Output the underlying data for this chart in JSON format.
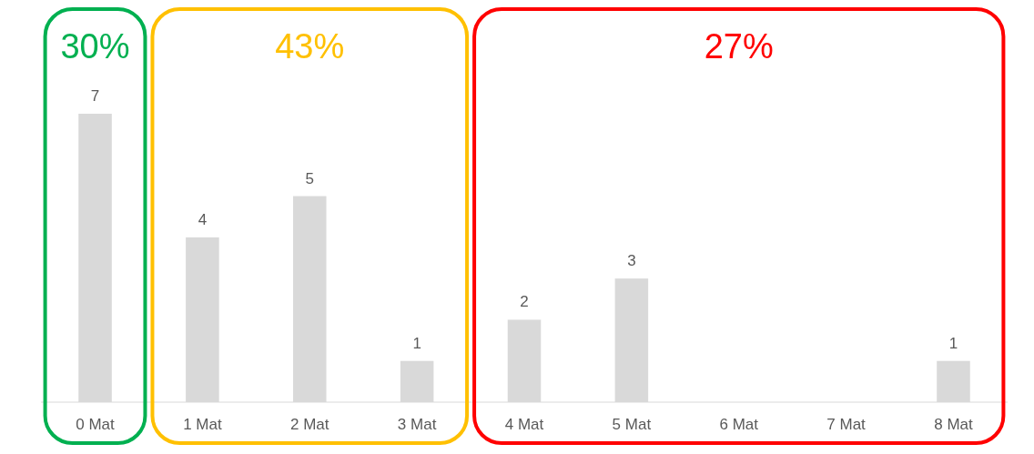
{
  "chart_data": {
    "type": "bar",
    "categories": [
      "0 Mat",
      "1 Mat",
      "2 Mat",
      "3 Mat",
      "4 Mat",
      "5 Mat",
      "6 Mat",
      "7 Mat",
      "8 Mat"
    ],
    "values": [
      7,
      4,
      5,
      1,
      2,
      3,
      0,
      0,
      1
    ],
    "value_labels": [
      "7",
      "4",
      "5",
      "1",
      "2",
      "3",
      null,
      null,
      "1"
    ],
    "color": "#d9d9d9",
    "annotations": [
      "30%",
      "43%",
      "27%"
    ]
  }
}
